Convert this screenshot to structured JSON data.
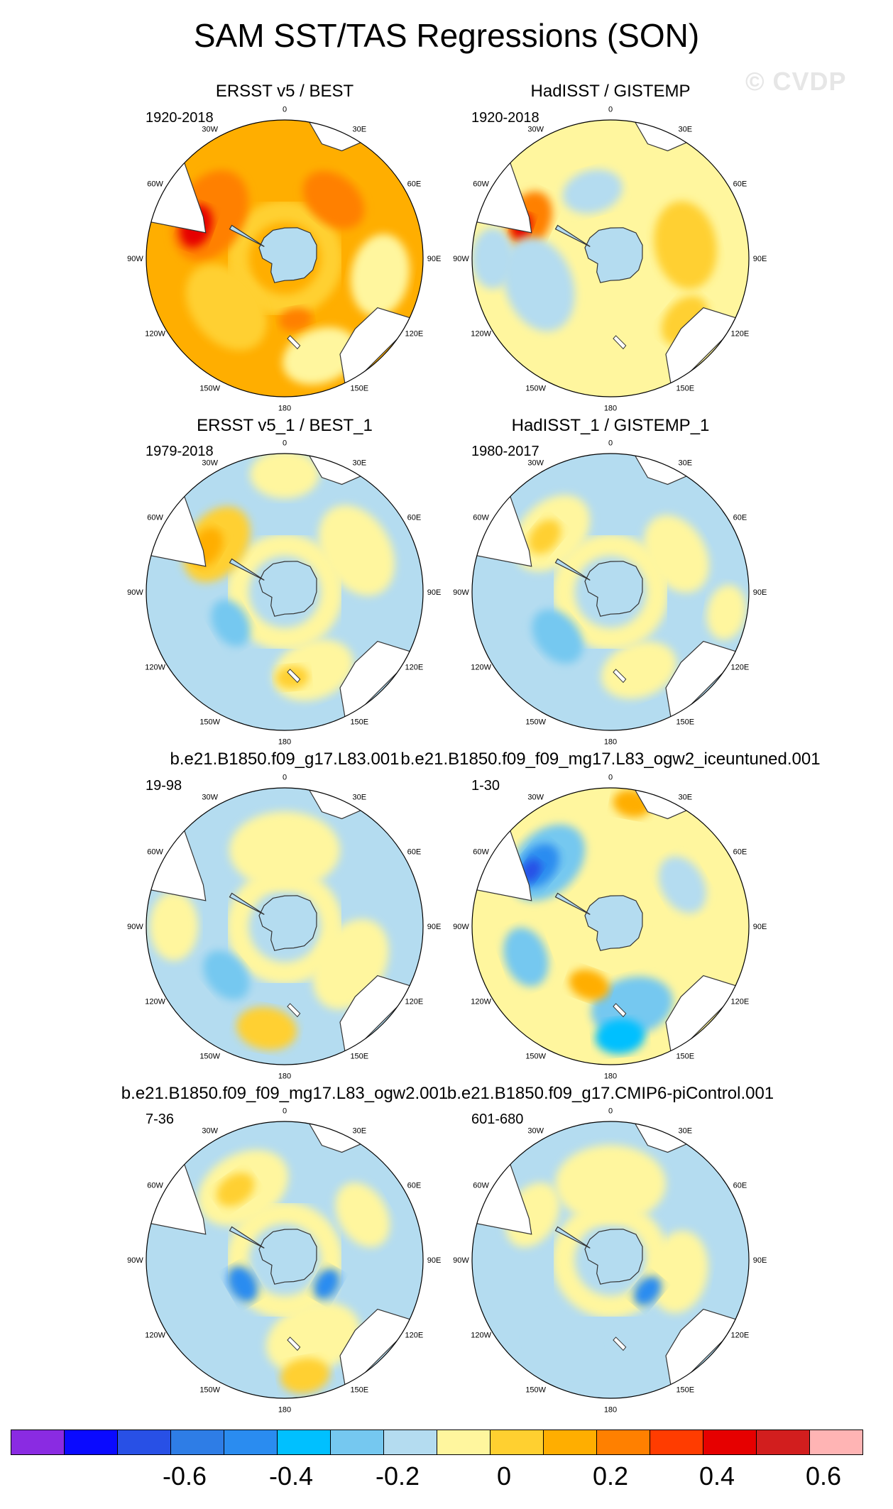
{
  "title": "SAM SST/TAS Regressions (SON)",
  "watermark": "© CVDP",
  "lon_labels": [
    "0",
    "30E",
    "60E",
    "90E",
    "120E",
    "150E",
    "180",
    "150W",
    "120W",
    "90W",
    "60W",
    "30W"
  ],
  "panels": [
    {
      "title": "ERSST v5 / BEST",
      "period": "1920-2018",
      "background": "#ffae00",
      "patches": [
        {
          "lon": -60,
          "r": 0.62,
          "s": 0.35,
          "color": "#ff8000"
        },
        {
          "lon": -70,
          "r": 0.68,
          "s": 0.16,
          "color": "#e60000"
        },
        {
          "lon": 40,
          "r": 0.55,
          "s": 0.25,
          "color": "#ff8000"
        },
        {
          "lon": 170,
          "r": 0.45,
          "s": 0.12,
          "color": "#ff8000"
        },
        {
          "lon": -130,
          "r": 0.55,
          "s": 0.35,
          "color": "#ffd030"
        },
        {
          "lon": 100,
          "r": 0.7,
          "s": 0.3,
          "color": "#fff69e"
        },
        {
          "lon": 160,
          "r": 0.75,
          "s": 0.28,
          "color": "#fff69e"
        }
      ],
      "ring": "#ffd030",
      "ice": "#b4dcf0"
    },
    {
      "title": "HadISST / GISTEMP",
      "period": "1920-2018",
      "background": "#fff69e",
      "patches": [
        {
          "lon": -65,
          "r": 0.65,
          "s": 0.22,
          "color": "#ff8000"
        },
        {
          "lon": -70,
          "r": 0.68,
          "s": 0.1,
          "color": "#e60000"
        },
        {
          "lon": -110,
          "r": 0.55,
          "s": 0.35,
          "color": "#b4dcf0"
        },
        {
          "lon": -90,
          "r": 0.85,
          "s": 0.22,
          "color": "#b4dcf0"
        },
        {
          "lon": 80,
          "r": 0.55,
          "s": 0.32,
          "color": "#ffd030"
        },
        {
          "lon": 130,
          "r": 0.7,
          "s": 0.2,
          "color": "#ffd030"
        },
        {
          "lon": -15,
          "r": 0.5,
          "s": 0.22,
          "color": "#b4dcf0"
        }
      ],
      "ring": "#fff69e",
      "ice": "#b4dcf0"
    },
    {
      "title": "ERSST v5_1 / BEST_1",
      "period": "1979-2018",
      "background": "#b4dcf0",
      "patches": [
        {
          "lon": -55,
          "r": 0.6,
          "s": 0.3,
          "color": "#ffd030"
        },
        {
          "lon": -60,
          "r": 0.65,
          "s": 0.15,
          "color": "#ffae00"
        },
        {
          "lon": 60,
          "r": 0.6,
          "s": 0.35,
          "color": "#fff69e"
        },
        {
          "lon": 160,
          "r": 0.6,
          "s": 0.3,
          "color": "#fff69e"
        },
        {
          "lon": 175,
          "r": 0.62,
          "s": 0.12,
          "color": "#ffd030"
        },
        {
          "lon": -120,
          "r": 0.45,
          "s": 0.18,
          "color": "#75c8f0"
        },
        {
          "lon": 0,
          "r": 0.85,
          "s": 0.25,
          "color": "#fff69e"
        }
      ],
      "ring": "#fff69e",
      "ice": "#b4dcf0"
    },
    {
      "title": "HadISST_1 / GISTEMP_1",
      "period": "1980-2017",
      "background": "#b4dcf0",
      "patches": [
        {
          "lon": -45,
          "r": 0.6,
          "s": 0.32,
          "color": "#fff69e"
        },
        {
          "lon": -50,
          "r": 0.62,
          "s": 0.14,
          "color": "#ffd030"
        },
        {
          "lon": 60,
          "r": 0.55,
          "s": 0.3,
          "color": "#fff69e"
        },
        {
          "lon": 160,
          "r": 0.6,
          "s": 0.28,
          "color": "#fff69e"
        },
        {
          "lon": -130,
          "r": 0.5,
          "s": 0.22,
          "color": "#75c8f0"
        },
        {
          "lon": 100,
          "r": 0.85,
          "s": 0.2,
          "color": "#fff69e"
        }
      ],
      "ring": "#fff69e",
      "ice": "#b4dcf0"
    },
    {
      "title": "b.e21.B1850.f09_g17.L83.001",
      "period": "19-98",
      "background": "#b4dcf0",
      "patches": [
        {
          "lon": 0,
          "r": 0.55,
          "s": 0.4,
          "color": "#fff69e"
        },
        {
          "lon": 120,
          "r": 0.55,
          "s": 0.35,
          "color": "#fff69e"
        },
        {
          "lon": -170,
          "r": 0.75,
          "s": 0.22,
          "color": "#ffd030"
        },
        {
          "lon": -130,
          "r": 0.55,
          "s": 0.2,
          "color": "#75c8f0"
        },
        {
          "lon": -90,
          "r": 0.8,
          "s": 0.25,
          "color": "#fff69e"
        }
      ],
      "ring": "#fff69e",
      "ice": "#b4dcf0"
    },
    {
      "title": "b.e21.B1850.f09_f09_mg17.L83_ogw2_iceuntuned.001",
      "period": "1-30",
      "background": "#fff69e",
      "patches": [
        {
          "lon": -45,
          "r": 0.65,
          "s": 0.32,
          "color": "#75c8f0"
        },
        {
          "lon": -50,
          "r": 0.68,
          "s": 0.18,
          "color": "#2a8cf0"
        },
        {
          "lon": -55,
          "r": 0.7,
          "s": 0.09,
          "color": "#2850e6"
        },
        {
          "lon": 10,
          "r": 0.9,
          "s": 0.14,
          "color": "#ffae00"
        },
        {
          "lon": 165,
          "r": 0.6,
          "s": 0.3,
          "color": "#75c8f0"
        },
        {
          "lon": 175,
          "r": 0.8,
          "s": 0.18,
          "color": "#00c0ff"
        },
        {
          "lon": -160,
          "r": 0.45,
          "s": 0.15,
          "color": "#ffae00"
        },
        {
          "lon": 60,
          "r": 0.6,
          "s": 0.22,
          "color": "#b4dcf0"
        },
        {
          "lon": -110,
          "r": 0.65,
          "s": 0.22,
          "color": "#75c8f0"
        }
      ],
      "ring": "#fff69e",
      "ice": "#b4dcf0"
    },
    {
      "title": "b.e21.B1850.f09_f09_mg17.L83_ogw2.001",
      "period": "7-36",
      "background": "#b4dcf0",
      "patches": [
        {
          "lon": -30,
          "r": 0.6,
          "s": 0.35,
          "color": "#fff69e"
        },
        {
          "lon": -35,
          "r": 0.62,
          "s": 0.15,
          "color": "#ffd030"
        },
        {
          "lon": 160,
          "r": 0.6,
          "s": 0.35,
          "color": "#fff69e"
        },
        {
          "lon": 170,
          "r": 0.85,
          "s": 0.18,
          "color": "#ffd030"
        },
        {
          "lon": -120,
          "r": 0.35,
          "s": 0.14,
          "color": "#2a8cf0"
        },
        {
          "lon": 120,
          "r": 0.35,
          "s": 0.12,
          "color": "#2a8cf0"
        },
        {
          "lon": 60,
          "r": 0.65,
          "s": 0.25,
          "color": "#fff69e"
        }
      ],
      "ring": "#fff69e",
      "ice": "#b4dcf0"
    },
    {
      "title": "b.e21.B1850.f09_g17.CMIP6-piControl.001",
      "period": "601-680",
      "background": "#b4dcf0",
      "patches": [
        {
          "lon": 0,
          "r": 0.55,
          "s": 0.4,
          "color": "#fff69e"
        },
        {
          "lon": 100,
          "r": 0.5,
          "s": 0.3,
          "color": "#fff69e"
        },
        {
          "lon": 130,
          "r": 0.35,
          "s": 0.12,
          "color": "#2a8cf0"
        },
        {
          "lon": -60,
          "r": 0.65,
          "s": 0.25,
          "color": "#fff69e"
        },
        {
          "lon": -150,
          "r": 0.7,
          "s": 0.25,
          "color": "#b4dcf0"
        }
      ],
      "ring": "#fff69e",
      "ice": "#b4dcf0"
    }
  ],
  "colorbar": {
    "colors": [
      "#8a2be2",
      "#0a0aff",
      "#2850e6",
      "#2e7de6",
      "#2a8cf0",
      "#00c0ff",
      "#75c8f0",
      "#b4dcf0",
      "#fff69e",
      "#ffd030",
      "#ffae00",
      "#ff8000",
      "#ff3c00",
      "#e60000",
      "#d21e1e",
      "#ffb4b4"
    ],
    "labels": [
      "-0.6",
      "-0.4",
      "-0.2",
      "0",
      "0.2",
      "0.4",
      "0.6"
    ]
  }
}
